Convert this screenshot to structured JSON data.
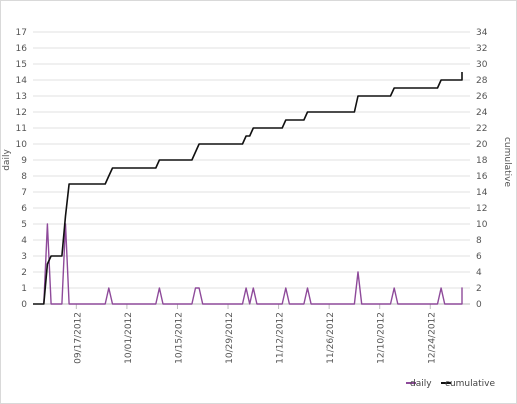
{
  "chart_data": {
    "type": "line",
    "ylabel": "daily",
    "y2label": "cumulative",
    "ylim": [
      0,
      17
    ],
    "y2lim": [
      0,
      34
    ],
    "yticks": [
      0,
      1,
      2,
      3,
      4,
      5,
      6,
      7,
      8,
      9,
      10,
      11,
      12,
      13,
      14,
      15,
      16,
      17
    ],
    "y2ticks": [
      0,
      2,
      4,
      6,
      8,
      10,
      12,
      14,
      16,
      18,
      20,
      22,
      24,
      26,
      28,
      30,
      32,
      34
    ],
    "xlim": [
      "2012-09-05",
      "2013-01-04"
    ],
    "xticks": [
      {
        "date": "2012-09-17",
        "label": "09/17/2012"
      },
      {
        "date": "2012-10-01",
        "label": "10/01/2012"
      },
      {
        "date": "2012-10-15",
        "label": "10/15/2012"
      },
      {
        "date": "2012-10-29",
        "label": "10/29/2012"
      },
      {
        "date": "2012-11-12",
        "label": "11/12/2012"
      },
      {
        "date": "2012-11-26",
        "label": "11/26/2012"
      },
      {
        "date": "2012-12-10",
        "label": "12/10/2012"
      },
      {
        "date": "2012-12-24",
        "label": "12/24/2012"
      }
    ],
    "grid": true,
    "legend_position": "bottom-right",
    "series": [
      {
        "name": "daily",
        "axis": "left",
        "color": "#8e4a9a",
        "points": [
          [
            "2012-09-08",
            0
          ],
          [
            "2012-09-09",
            5
          ],
          [
            "2012-09-10",
            0
          ],
          [
            "2012-09-13",
            0
          ],
          [
            "2012-09-14",
            5
          ],
          [
            "2012-09-15",
            0
          ],
          [
            "2012-09-25",
            0
          ],
          [
            "2012-09-26",
            1
          ],
          [
            "2012-09-27",
            0
          ],
          [
            "2012-10-09",
            0
          ],
          [
            "2012-10-10",
            1
          ],
          [
            "2012-10-11",
            0
          ],
          [
            "2012-10-19",
            0
          ],
          [
            "2012-10-20",
            1
          ],
          [
            "2012-10-21",
            1
          ],
          [
            "2012-10-22",
            0
          ],
          [
            "2012-11-02",
            0
          ],
          [
            "2012-11-03",
            1
          ],
          [
            "2012-11-04",
            0
          ],
          [
            "2012-11-05",
            1
          ],
          [
            "2012-11-06",
            0
          ],
          [
            "2012-11-13",
            0
          ],
          [
            "2012-11-14",
            1
          ],
          [
            "2012-11-15",
            0
          ],
          [
            "2012-11-19",
            0
          ],
          [
            "2012-11-20",
            1
          ],
          [
            "2012-11-21",
            0
          ],
          [
            "2012-12-03",
            0
          ],
          [
            "2012-12-04",
            2
          ],
          [
            "2012-12-05",
            0
          ],
          [
            "2012-12-13",
            0
          ],
          [
            "2012-12-14",
            1
          ],
          [
            "2012-12-15",
            0
          ],
          [
            "2012-12-26",
            0
          ],
          [
            "2012-12-27",
            1
          ],
          [
            "2012-12-28",
            0
          ],
          [
            "2013-01-03",
            0
          ],
          [
            "2013-01-04",
            1
          ],
          [
            "2013-01-05",
            0
          ],
          [
            "2013-01-07",
            0
          ]
        ]
      },
      {
        "name": "cumulative",
        "axis": "right",
        "color": "#111111",
        "points": [
          [
            "2012-09-05",
            0
          ],
          [
            "2012-09-08",
            0
          ],
          [
            "2012-09-09",
            5
          ],
          [
            "2012-09-10",
            6
          ],
          [
            "2012-09-13",
            6
          ],
          [
            "2012-09-14",
            11
          ],
          [
            "2012-09-15",
            15
          ],
          [
            "2012-09-25",
            15
          ],
          [
            "2012-09-26",
            16
          ],
          [
            "2012-09-27",
            17
          ],
          [
            "2012-10-09",
            17
          ],
          [
            "2012-10-10",
            18
          ],
          [
            "2012-10-11",
            18
          ],
          [
            "2012-10-19",
            18
          ],
          [
            "2012-10-20",
            19
          ],
          [
            "2012-10-21",
            20
          ],
          [
            "2012-11-02",
            20
          ],
          [
            "2012-11-03",
            21
          ],
          [
            "2012-11-04",
            21
          ],
          [
            "2012-11-05",
            22
          ],
          [
            "2012-11-13",
            22
          ],
          [
            "2012-11-14",
            23
          ],
          [
            "2012-11-19",
            23
          ],
          [
            "2012-11-20",
            24
          ],
          [
            "2012-12-03",
            24
          ],
          [
            "2012-12-04",
            26
          ],
          [
            "2012-12-13",
            26
          ],
          [
            "2012-12-14",
            27
          ],
          [
            "2012-12-26",
            27
          ],
          [
            "2012-12-27",
            28
          ],
          [
            "2013-01-03",
            28
          ],
          [
            "2013-01-04",
            29
          ],
          [
            "2013-01-07",
            29
          ]
        ]
      }
    ]
  }
}
